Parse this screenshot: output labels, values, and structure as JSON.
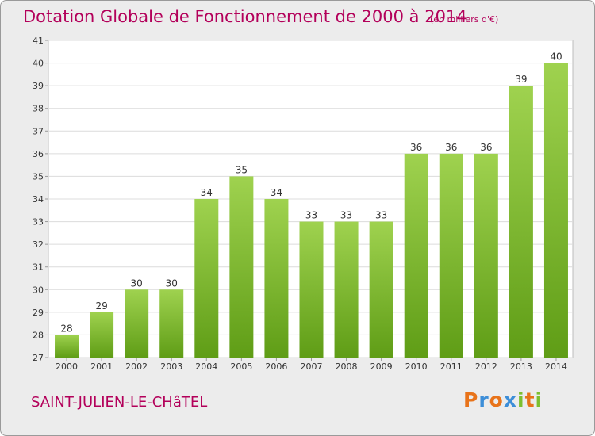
{
  "header": {
    "title": "Dotation Globale de Fonctionnement de 2000 à 2014",
    "unit": "(en milliers d'€)"
  },
  "footer": {
    "town": "SAINT-JULIEN-LE-CHâTEL",
    "logo": [
      "P",
      "r",
      "o",
      "x",
      "i",
      "t",
      "i"
    ],
    "logo_colors": [
      "#e8731a",
      "#3d8ed8",
      "#e8731a",
      "#3d8ed8",
      "#7cbf2f",
      "#e8731a",
      "#7cbf2f"
    ]
  },
  "colors": {
    "bar_light": "#9fd24f",
    "bar_dark": "#5f9d16",
    "title": "#b3005a",
    "plot_bg": "#ffffff",
    "frame_bg": "#ececec"
  },
  "chart_data": {
    "type": "bar",
    "title": "Dotation Globale de Fonctionnement de 2000 à 2014",
    "subtitle": "(en milliers d'€)",
    "categories": [
      "2000",
      "2001",
      "2002",
      "2003",
      "2004",
      "2005",
      "2006",
      "2007",
      "2008",
      "2009",
      "2010",
      "2011",
      "2012",
      "2013",
      "2014"
    ],
    "values": [
      28,
      29,
      30,
      30,
      34,
      35,
      34,
      33,
      33,
      33,
      36,
      36,
      36,
      39,
      40
    ],
    "ylim": [
      27,
      41
    ],
    "yticks": [
      27,
      28,
      29,
      30,
      31,
      32,
      33,
      34,
      35,
      36,
      37,
      38,
      39,
      40,
      41
    ],
    "grid": "horizontal",
    "legend": "none"
  }
}
